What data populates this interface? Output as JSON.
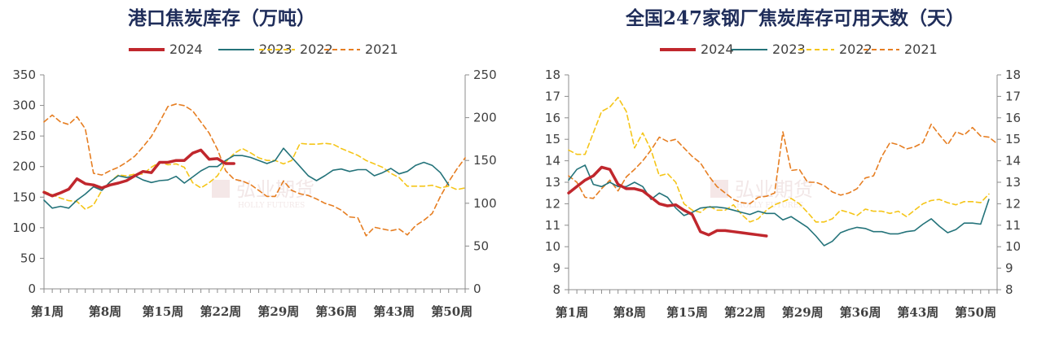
{
  "chart_data": [
    {
      "type": "line",
      "title": "港口焦炭库存（万吨）",
      "x_categories_label_format": "第N周",
      "x_tick_labels": [
        "第1周",
        "第8周",
        "第15周",
        "第22周",
        "第29周",
        "第36周",
        "第43周",
        "第50周"
      ],
      "x_tick_weeks": [
        1,
        8,
        15,
        22,
        29,
        36,
        43,
        50
      ],
      "y_left": {
        "ylim": [
          0,
          350
        ],
        "ticks": [
          0,
          50,
          100,
          150,
          200,
          250,
          300,
          350
        ]
      },
      "y_right": {
        "ylim": [
          0,
          250
        ],
        "ticks": [
          0,
          50,
          100,
          150,
          200,
          250
        ]
      },
      "legend": [
        "2024",
        "2023",
        "2022",
        "2021"
      ],
      "series": [
        {
          "name": "2024",
          "color": "#c0272d",
          "dash": "solid",
          "axis": "left",
          "values": [
            158,
            152,
            157,
            163,
            180,
            172,
            170,
            165,
            170,
            173,
            177,
            185,
            192,
            190,
            207,
            207,
            210,
            210,
            222,
            227,
            212,
            213,
            205,
            205
          ]
        },
        {
          "name": "2023",
          "color": "#24737a",
          "dash": "solid",
          "axis": "left",
          "values": [
            145,
            132,
            135,
            132,
            145,
            155,
            167,
            161,
            175,
            185,
            182,
            185,
            178,
            174,
            177,
            178,
            184,
            173,
            183,
            193,
            200,
            200,
            210,
            218,
            218,
            215,
            210,
            205,
            210,
            230,
            215,
            200,
            185,
            177,
            185,
            194,
            196,
            192,
            195,
            195,
            185,
            190,
            197,
            188,
            192,
            202,
            207,
            202,
            190,
            170
          ]
        },
        {
          "name": "2022",
          "color": "#f5c518",
          "dash": "dash",
          "axis": "right",
          "values": [
            114,
            110,
            106,
            103,
            102,
            93,
            98,
            115,
            125,
            133,
            132,
            134,
            134,
            142,
            148,
            145,
            146,
            142,
            124,
            118,
            124,
            132,
            148,
            158,
            164,
            159,
            153,
            150,
            150,
            146,
            150,
            170,
            169,
            169,
            170,
            169,
            164,
            160,
            156,
            150,
            146,
            142,
            135,
            130,
            120,
            120,
            120,
            121,
            118,
            120,
            116,
            118
          ]
        },
        {
          "name": "2021",
          "color": "#e67e22",
          "dash": "dash",
          "axis": "right",
          "values": [
            195,
            203,
            195,
            192,
            201,
            187,
            135,
            133,
            138,
            142,
            148,
            155,
            166,
            178,
            195,
            213,
            216,
            214,
            208,
            195,
            182,
            163,
            138,
            128,
            126,
            122,
            115,
            108,
            108,
            126,
            115,
            111,
            109,
            105,
            100,
            97,
            92,
            84,
            83,
            62,
            72,
            70,
            68,
            70,
            63,
            74,
            80,
            88,
            108,
            125,
            140,
            153
          ]
        }
      ]
    },
    {
      "type": "line",
      "title": "全国247家钢厂焦炭库存可用天数（天）",
      "x_tick_labels": [
        "第1周",
        "第8周",
        "第15周",
        "第22周",
        "第29周",
        "第36周",
        "第43周",
        "第50周"
      ],
      "x_tick_weeks": [
        1,
        8,
        15,
        22,
        29,
        36,
        43,
        50
      ],
      "y_left": {
        "ylim": [
          8,
          18
        ],
        "ticks": [
          8,
          9,
          10,
          11,
          12,
          13,
          14,
          15,
          16,
          17,
          18
        ]
      },
      "y_right": {
        "ylim": [
          8,
          18
        ],
        "ticks": [
          8,
          9,
          10,
          11,
          12,
          13,
          14,
          15,
          16,
          17,
          18
        ]
      },
      "legend": [
        "2024",
        "2023",
        "2022",
        "2021"
      ],
      "series": [
        {
          "name": "2024",
          "color": "#c0272d",
          "dash": "solid",
          "axis": "left",
          "values": [
            12.5,
            12.8,
            13.1,
            13.3,
            13.7,
            13.6,
            12.9,
            12.7,
            12.7,
            12.6,
            12.3,
            12.0,
            11.9,
            11.95,
            11.7,
            11.5,
            10.7,
            10.55,
            10.75,
            10.75,
            10.7,
            10.65,
            10.6,
            10.55,
            10.5
          ]
        },
        {
          "name": "2023",
          "color": "#24737a",
          "dash": "solid",
          "axis": "left",
          "values": [
            13.1,
            13.6,
            13.8,
            12.9,
            12.8,
            13.0,
            12.8,
            12.8,
            13.0,
            12.8,
            12.2,
            12.5,
            12.3,
            11.8,
            11.45,
            11.6,
            11.8,
            11.85,
            11.85,
            11.8,
            11.7,
            11.6,
            11.5,
            11.65,
            11.55,
            11.55,
            11.25,
            11.4,
            11.15,
            10.9,
            10.5,
            10.05,
            10.25,
            10.65,
            10.8,
            10.9,
            10.85,
            10.7,
            10.7,
            10.6,
            10.6,
            10.7,
            10.75,
            11.05,
            11.3,
            10.95,
            10.65,
            10.8,
            11.1,
            11.1,
            11.05,
            12.2
          ]
        },
        {
          "name": "2022",
          "color": "#f5c518",
          "dash": "dash",
          "axis": "left",
          "values": [
            14.5,
            14.3,
            14.3,
            15.3,
            16.3,
            16.5,
            16.95,
            16.3,
            14.6,
            15.3,
            14.5,
            13.3,
            13.4,
            13.0,
            12.0,
            11.7,
            11.6,
            11.9,
            11.7,
            11.7,
            11.95,
            11.5,
            11.15,
            11.3,
            11.7,
            11.95,
            12.1,
            12.25,
            12.0,
            11.6,
            11.15,
            11.15,
            11.3,
            11.7,
            11.6,
            11.45,
            11.75,
            11.65,
            11.65,
            11.55,
            11.65,
            11.4,
            11.7,
            12.0,
            12.15,
            12.2,
            12.05,
            11.95,
            12.1,
            12.1,
            12.05,
            12.45
          ]
        },
        {
          "name": "2021",
          "color": "#e67e22",
          "dash": "dash",
          "axis": "left",
          "values": [
            13.3,
            13.0,
            12.3,
            12.25,
            12.7,
            13.1,
            12.6,
            13.25,
            13.6,
            14.0,
            14.5,
            15.1,
            14.9,
            15.0,
            14.6,
            14.2,
            13.9,
            13.3,
            12.8,
            12.5,
            12.2,
            12.05,
            12.0,
            12.3,
            12.35,
            12.5,
            15.35,
            13.55,
            13.6,
            13.0,
            13.0,
            12.85,
            12.55,
            12.4,
            12.5,
            12.7,
            13.2,
            13.3,
            14.2,
            14.85,
            14.75,
            14.55,
            14.65,
            14.85,
            15.7,
            15.2,
            14.75,
            15.35,
            15.2,
            15.55,
            15.15,
            15.1,
            14.8
          ]
        }
      ]
    }
  ]
}
